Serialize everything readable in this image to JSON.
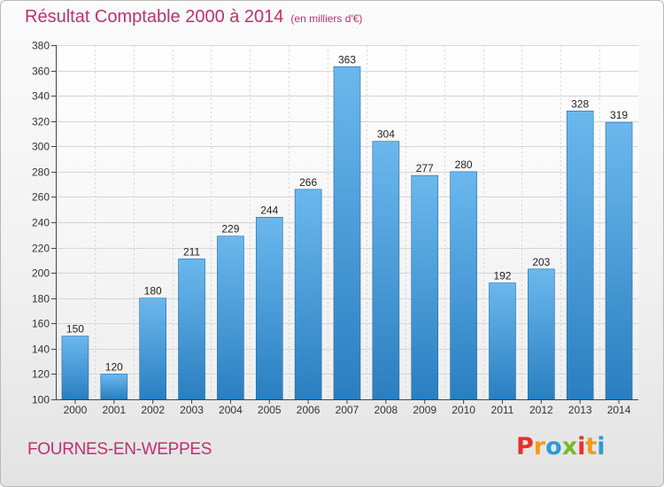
{
  "header": {
    "title": "Résultat Comptable 2000 à 2014",
    "unit_note": "(en milliers d'€)"
  },
  "footer": {
    "place_name": "FOURNES-EN-WEPPES",
    "logo_letters": [
      "P",
      "r",
      "o",
      "x",
      "i",
      "t",
      "i"
    ],
    "logo_colors": [
      "#e8302a",
      "#f39a1c",
      "#2c9ad8",
      "#7ab829",
      "#e8302a",
      "#f39a1c",
      "#2c9ad8"
    ]
  },
  "colors": {
    "title": "#c0306e",
    "bar_top": "#6bb8ee",
    "bar_bottom": "#2a7fc0",
    "bar_edge": "#1f6aa6",
    "grid": "#d6d6d6",
    "axis": "#444444"
  },
  "chart_data": {
    "type": "bar",
    "title": "Résultat Comptable 2000 à 2014",
    "subtitle": "(en milliers d'€)",
    "xlabel": "",
    "ylabel": "",
    "categories": [
      "2000",
      "2001",
      "2002",
      "2003",
      "2004",
      "2005",
      "2006",
      "2007",
      "2008",
      "2009",
      "2010",
      "2011",
      "2012",
      "2013",
      "2014"
    ],
    "values": [
      150,
      120,
      180,
      211,
      229,
      244,
      266,
      363,
      304,
      277,
      280,
      192,
      203,
      328,
      319
    ],
    "ylim": [
      100,
      380
    ],
    "yticks": [
      100,
      120,
      140,
      160,
      180,
      200,
      220,
      240,
      260,
      280,
      300,
      320,
      340,
      360,
      380
    ],
    "grid": true,
    "data_labels": true
  }
}
